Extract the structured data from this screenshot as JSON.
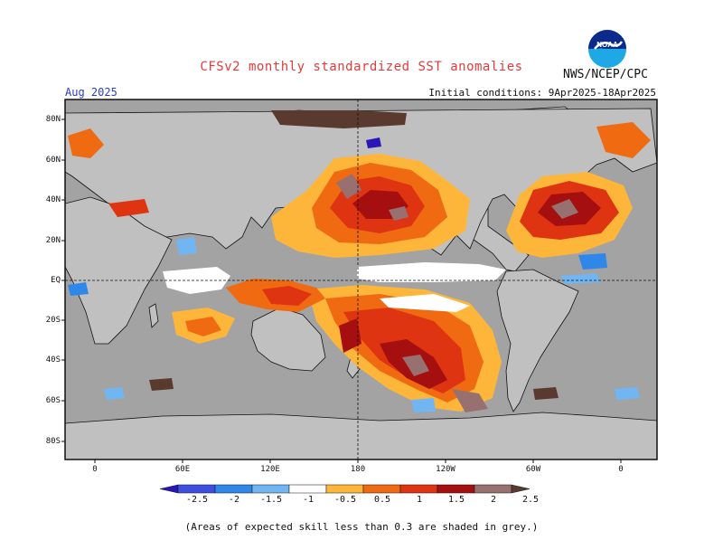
{
  "title": "CFSv2 monthly standardized SST anomalies",
  "agency": "NWS/NCEP/CPC",
  "logo_text": "NOAA",
  "valid_month": "Aug 2025",
  "initial_conditions": "Initial conditions: 9Apr2025-18Apr2025",
  "lat_labels": [
    "80N",
    "60N",
    "40N",
    "20N",
    "EQ",
    "20S",
    "40S",
    "60S",
    "80S"
  ],
  "lon_labels": [
    "0",
    "60E",
    "120E",
    "180",
    "120W",
    "60W",
    "0"
  ],
  "colorbar": {
    "tick_labels": [
      "-2.5",
      "-2",
      "-1.5",
      "-1",
      "-0.5",
      "0.5",
      "1",
      "1.5",
      "2",
      "2.5"
    ],
    "colors": [
      "#2a16b8",
      "#3d4fe0",
      "#2f87ea",
      "#71b5f2",
      "#ffffff",
      "#fdb63a",
      "#f06a12",
      "#de3412",
      "#a50f0f",
      "#987070",
      "#5a3a2e"
    ]
  },
  "colors": {
    "land": "#c0c0c0",
    "skill_grey": "#a3a3a3",
    "title": "#e03c3c",
    "month": "#2b3bd0"
  },
  "footnote": "(Areas of expected skill less than 0.3 are shaded in grey.)"
}
